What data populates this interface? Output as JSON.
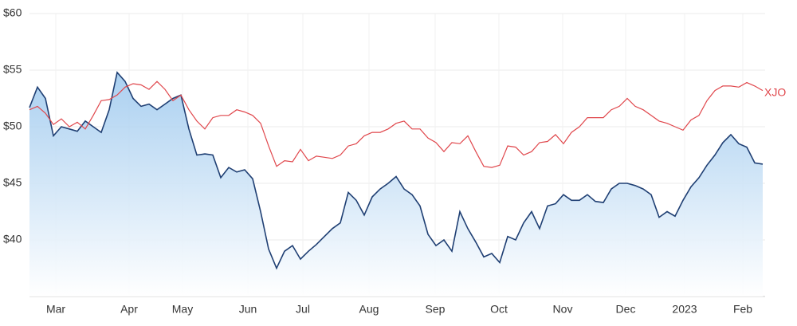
{
  "chart_data": {
    "type": "line",
    "x": [
      0,
      1,
      2,
      3,
      4,
      5,
      6,
      7,
      8,
      9,
      10,
      11,
      12,
      13,
      14,
      15,
      16,
      17,
      18,
      19,
      20,
      21,
      22,
      23,
      24,
      25,
      26,
      27,
      28,
      29,
      30,
      31,
      32,
      33,
      34,
      35,
      36,
      37,
      38,
      39,
      40,
      41,
      42,
      43,
      44,
      45,
      46,
      47,
      48,
      49,
      50,
      51,
      52,
      53,
      54,
      55,
      56,
      57,
      58,
      59,
      60,
      61,
      62,
      63,
      64,
      65,
      66,
      67,
      68,
      69,
      70,
      71,
      72,
      73,
      74,
      75,
      76,
      77,
      78,
      79,
      80,
      81,
      82,
      83,
      84,
      85,
      86,
      87,
      88,
      89,
      90,
      91,
      92
    ],
    "series": [
      {
        "color": "#1f3f73",
        "values": [
          51.7,
          53.5,
          52.5,
          49.2,
          50.0,
          49.8,
          49.6,
          50.5,
          50.0,
          49.5,
          51.5,
          54.8,
          54.0,
          52.5,
          51.8,
          52.0,
          51.5,
          52.0,
          52.5,
          52.8,
          49.8,
          47.5,
          47.6,
          47.5,
          45.5,
          46.4,
          46.0,
          46.2,
          45.4,
          42.5,
          39.2,
          37.5,
          39.0,
          39.5,
          38.3,
          39.0,
          39.6,
          40.3,
          41.0,
          41.5,
          44.2,
          43.5,
          42.2,
          43.8,
          44.5,
          45.0,
          45.6,
          44.5,
          44.0,
          43.0,
          40.5,
          39.5,
          40.0,
          39.0,
          42.5,
          41.0,
          39.8,
          38.5,
          38.8,
          38.0,
          40.3,
          40.0,
          41.5,
          42.5,
          41.0,
          43.0,
          43.2,
          44.0,
          43.5,
          43.5,
          44.0,
          43.4,
          43.3,
          44.5,
          45.0,
          45.0,
          44.8,
          44.5,
          44.0,
          42.0,
          42.5,
          42.1,
          43.5,
          44.7,
          45.5,
          46.6,
          47.5,
          48.6,
          49.3,
          48.5,
          48.2,
          46.8,
          46.7
        ]
      },
      {
        "name": "XJO",
        "color": "#e0474c",
        "values": [
          51.5,
          51.8,
          51.2,
          50.2,
          50.7,
          50.0,
          50.4,
          49.8,
          51.0,
          52.3,
          52.4,
          52.8,
          53.5,
          53.8,
          53.7,
          53.3,
          54.0,
          53.3,
          52.3,
          52.8,
          51.5,
          50.5,
          49.8,
          50.8,
          51.0,
          51.0,
          51.5,
          51.3,
          51.0,
          50.3,
          48.3,
          46.5,
          47.0,
          46.9,
          48.0,
          47.0,
          47.4,
          47.3,
          47.2,
          47.5,
          48.3,
          48.5,
          49.2,
          49.5,
          49.5,
          49.8,
          50.3,
          50.5,
          49.8,
          49.8,
          49.0,
          48.6,
          47.8,
          48.6,
          48.5,
          49.2,
          47.8,
          46.5,
          46.4,
          46.6,
          48.3,
          48.2,
          47.5,
          47.8,
          48.6,
          48.7,
          49.3,
          48.5,
          49.5,
          50.0,
          50.8,
          50.8,
          50.8,
          51.5,
          51.8,
          52.5,
          51.8,
          51.5,
          51.0,
          50.5,
          50.3,
          50.0,
          49.7,
          50.6,
          51.0,
          52.3,
          53.2,
          53.6,
          53.6,
          53.5,
          53.9,
          53.6,
          53.2
        ]
      }
    ],
    "xlim": [
      0,
      92.3
    ],
    "xticks": [
      {
        "value": 3.3,
        "label": "Mar"
      },
      {
        "value": 12.5,
        "label": "Apr"
      },
      {
        "value": 19.2,
        "label": "May"
      },
      {
        "value": 27.4,
        "label": "Jun"
      },
      {
        "value": 34.3,
        "label": "Jul"
      },
      {
        "value": 42.6,
        "label": "Aug"
      },
      {
        "value": 50.9,
        "label": "Sep"
      },
      {
        "value": 58.9,
        "label": "Oct"
      },
      {
        "value": 66.9,
        "label": "Nov"
      },
      {
        "value": 74.8,
        "label": "Dec"
      },
      {
        "value": 82.2,
        "label": "2023"
      },
      {
        "value": 89.5,
        "label": "Feb"
      }
    ],
    "ylim": [
      35,
      60
    ],
    "yticks": [
      {
        "value": 40,
        "label": "$40"
      },
      {
        "value": 45,
        "label": "$45"
      },
      {
        "value": 50,
        "label": "$50"
      },
      {
        "value": 55,
        "label": "$55"
      },
      {
        "value": 60,
        "label": "$60"
      }
    ],
    "grid": true
  }
}
